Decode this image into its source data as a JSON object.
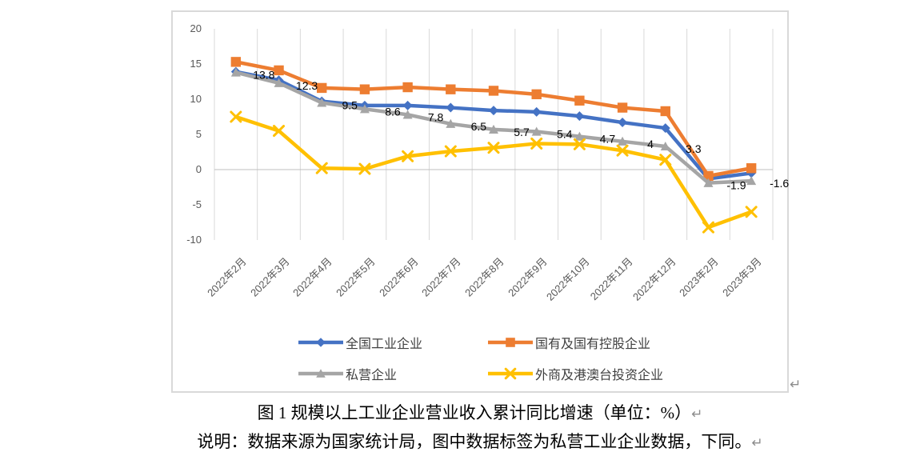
{
  "chart_data": {
    "type": "line",
    "title": "",
    "categories": [
      "2022年2月",
      "2022年3月",
      "2022年4月",
      "2022年5月",
      "2022年6月",
      "2022年7月",
      "2022年8月",
      "2022年9月",
      "2022年10月",
      "2022年11月",
      "2022年12月",
      "2023年2月",
      "2023年3月"
    ],
    "series": [
      {
        "name": "全国工业企业",
        "key": "national-industrial",
        "color": "#4472C4",
        "marker": "diamond",
        "values": [
          13.9,
          12.7,
          9.7,
          9.1,
          9.1,
          8.8,
          8.4,
          8.2,
          7.6,
          6.7,
          5.9,
          -1.3,
          -0.5
        ]
      },
      {
        "name": "国有及国有控股企业",
        "key": "state-owned",
        "color": "#ED7D31",
        "marker": "square",
        "values": [
          15.3,
          14.1,
          11.6,
          11.4,
          11.7,
          11.4,
          11.2,
          10.7,
          9.8,
          8.8,
          8.3,
          -0.9,
          0.2
        ]
      },
      {
        "name": "私营企业",
        "key": "private",
        "color": "#A5A5A5",
        "marker": "triangle",
        "values": [
          13.8,
          12.3,
          9.5,
          8.6,
          7.8,
          6.5,
          5.7,
          5.4,
          4.7,
          4,
          3.3,
          -1.9,
          -1.6
        ],
        "data_labels": [
          "13.8",
          "12.3",
          "9.5",
          "8.6",
          "7.8",
          "6.5",
          "5.7",
          "5.4",
          "4.7",
          "4",
          "3.3",
          "-1.9",
          "-1.6"
        ]
      },
      {
        "name": "外商及港澳台投资企业",
        "key": "foreign-hk-macao-taiwan",
        "color": "#FFC000",
        "marker": "x",
        "values": [
          7.5,
          5.5,
          0.2,
          0.1,
          1.9,
          2.6,
          3.1,
          3.7,
          3.6,
          2.7,
          1.4,
          -8.2,
          -6.0
        ]
      }
    ],
    "xlabel": "",
    "ylabel": "",
    "ylim": [
      -10,
      20
    ],
    "yticks": [
      20,
      15,
      10,
      5,
      0,
      -5,
      -10
    ],
    "grid": "vertical-major-only",
    "legend_position": "bottom",
    "gridline_color": "#d9d9d9",
    "axis_line_color": "#bfbfbf",
    "axis_label_color": "#595959",
    "data_label_color": "#000000"
  },
  "captions": {
    "figure_caption": "图 1 规模以上工业企业营业收入累计同比增速（单位：%）",
    "note": "说明：数据来源为国家统计局，图中数据标签为私营工业企业数据，下同。",
    "return_mark": "↵"
  }
}
